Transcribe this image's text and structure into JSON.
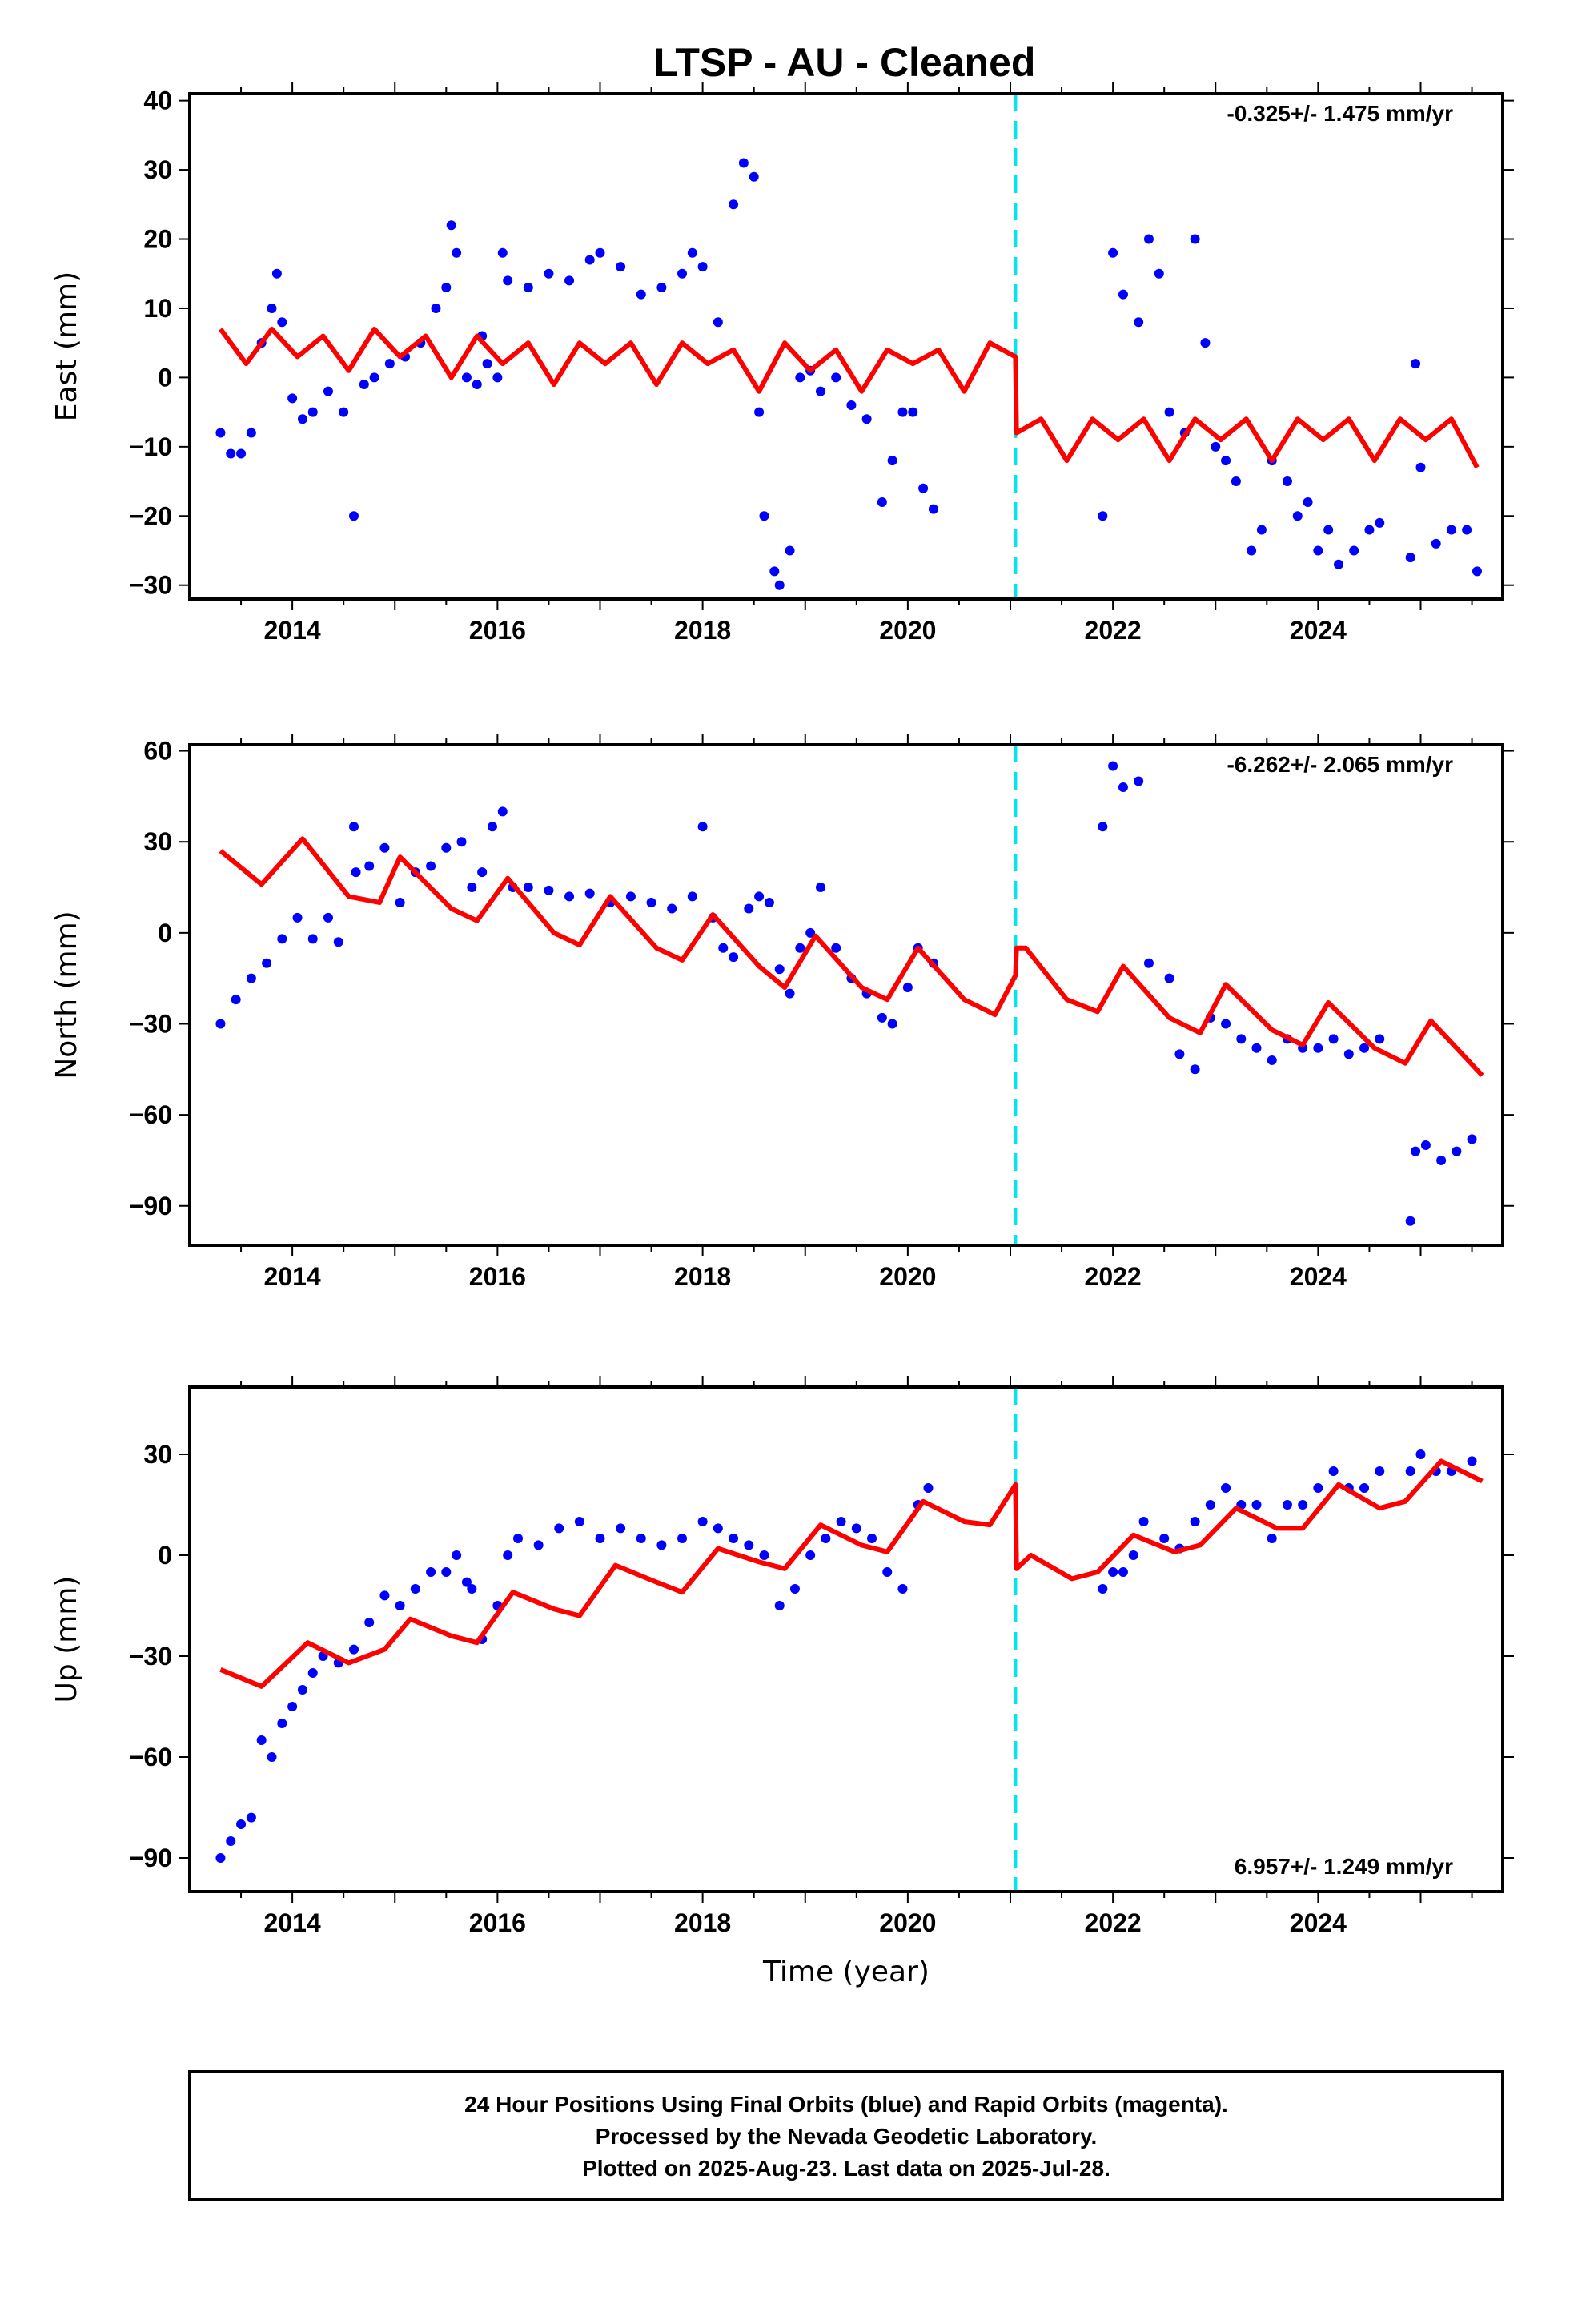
{
  "colors": {
    "data_points": "#0000ff",
    "model_line": "#ff0000",
    "offset_line": "#00e5ee",
    "frame": "#000000"
  },
  "chart_data": [
    {
      "type": "scatter",
      "component": "east",
      "title": "LTSP  - AU - Cleaned",
      "ylabel": "East (mm)",
      "xlabel": "",
      "xlim": [
        2013.0,
        2025.8
      ],
      "ylim": [
        -32,
        41
      ],
      "xticks": [
        2014,
        2016,
        2018,
        2020,
        2022,
        2024
      ],
      "yticks": [
        -30,
        -20,
        -10,
        0,
        10,
        20,
        30,
        40
      ],
      "rate_label": "-0.325+/- 1.475 mm/yr",
      "rate_label_position": "top-right",
      "offset_epoch": 2021.05,
      "series": [
        {
          "name": "",
          "kind": "points",
          "x": [
            2013.3,
            2013.4,
            2013.5,
            2013.6,
            2013.7,
            2013.8,
            2013.85,
            2013.9,
            2014.0,
            2014.1,
            2014.2,
            2014.35,
            2014.5,
            2014.6,
            2014.7,
            2014.8,
            2014.95,
            2015.1,
            2015.25,
            2015.4,
            2015.5,
            2015.55,
            2015.6,
            2015.7,
            2015.8,
            2015.85,
            2015.9,
            2016.0,
            2016.05,
            2016.1,
            2016.3,
            2016.5,
            2016.7,
            2016.9,
            2017.0,
            2017.2,
            2017.4,
            2017.6,
            2017.8,
            2017.9,
            2018.0,
            2018.15,
            2018.3,
            2018.4,
            2018.5,
            2018.55,
            2018.6,
            2018.7,
            2018.75,
            2018.85,
            2018.95,
            2019.05,
            2019.15,
            2019.3,
            2019.45,
            2019.6,
            2019.75,
            2019.85,
            2019.95,
            2020.05,
            2020.15,
            2020.25,
            2021.9,
            2022.0,
            2022.1,
            2022.25,
            2022.35,
            2022.45,
            2022.55,
            2022.7,
            2022.8,
            2022.9,
            2023.0,
            2023.1,
            2023.2,
            2023.35,
            2023.45,
            2023.55,
            2023.7,
            2023.8,
            2023.9,
            2024.0,
            2024.1,
            2024.2,
            2024.35,
            2024.5,
            2024.6,
            2024.9,
            2024.95,
            2025.0,
            2025.15,
            2025.3,
            2025.45,
            2025.55
          ],
          "y": [
            -8,
            -11,
            -11,
            -8,
            5,
            10,
            15,
            8,
            -3,
            -6,
            -5,
            -2,
            -5,
            -20,
            -1,
            0,
            2,
            3,
            5,
            10,
            13,
            22,
            18,
            0,
            -1,
            6,
            2,
            0,
            18,
            14,
            13,
            15,
            14,
            17,
            18,
            16,
            12,
            13,
            15,
            18,
            16,
            8,
            25,
            31,
            29,
            -5,
            -20,
            -28,
            -30,
            -25,
            0,
            1,
            -2,
            0,
            -4,
            -6,
            -18,
            -12,
            -5,
            -5,
            -16,
            -19,
            -20,
            18,
            12,
            8,
            20,
            15,
            -5,
            -8,
            20,
            5,
            -10,
            -12,
            -15,
            -25,
            -22,
            -12,
            -15,
            -20,
            -18,
            -25,
            -22,
            -27,
            -25,
            -22,
            -21,
            -26,
            2,
            -13,
            -24,
            -22,
            -22,
            -28
          ],
          "color": "#0000ff"
        },
        {
          "name": "",
          "kind": "line",
          "x": [
            2013.3,
            2013.55,
            2013.8,
            2014.05,
            2014.3,
            2014.55,
            2014.8,
            2015.05,
            2015.3,
            2015.55,
            2015.8,
            2016.05,
            2016.3,
            2016.55,
            2016.8,
            2017.05,
            2017.3,
            2017.55,
            2017.8,
            2018.05,
            2018.3,
            2018.55,
            2018.8,
            2019.05,
            2019.3,
            2019.55,
            2019.8,
            2020.05,
            2020.3,
            2020.55,
            2020.8,
            2021.05,
            2021.06,
            2021.3,
            2021.55,
            2021.8,
            2022.05,
            2022.3,
            2022.55,
            2022.8,
            2023.05,
            2023.3,
            2023.55,
            2023.8,
            2024.05,
            2024.3,
            2024.55,
            2024.8,
            2025.05,
            2025.3,
            2025.55
          ],
          "y": [
            7,
            2,
            7,
            3,
            6,
            1,
            7,
            3,
            6,
            0,
            6,
            2,
            5,
            -1,
            5,
            2,
            5,
            -1,
            5,
            2,
            4,
            -2,
            5,
            1,
            4,
            -2,
            4,
            2,
            4,
            -2,
            5,
            3,
            -8,
            -6,
            -12,
            -6,
            -9,
            -6,
            -12,
            -6,
            -9,
            -6,
            -12,
            -6,
            -9,
            -6,
            -12,
            -6,
            -9,
            -6,
            -13
          ],
          "color": "#ff0000"
        }
      ]
    },
    {
      "type": "scatter",
      "component": "north",
      "title": "",
      "ylabel": "North (mm)",
      "xlabel": "",
      "xlim": [
        2013.0,
        2025.8
      ],
      "ylim": [
        -103,
        62
      ],
      "xticks": [
        2014,
        2016,
        2018,
        2020,
        2022,
        2024
      ],
      "yticks": [
        -90,
        -60,
        -30,
        0,
        30,
        60
      ],
      "rate_label": "-6.262+/- 2.065 mm/yr",
      "rate_label_position": "top-right",
      "offset_epoch": 2021.05,
      "series": [
        {
          "name": "",
          "kind": "points",
          "x": [
            2013.3,
            2013.45,
            2013.6,
            2013.75,
            2013.9,
            2014.05,
            2014.2,
            2014.35,
            2014.45,
            2014.6,
            2014.62,
            2014.75,
            2014.9,
            2015.05,
            2015.2,
            2015.35,
            2015.5,
            2015.65,
            2015.75,
            2015.85,
            2015.95,
            2016.05,
            2016.15,
            2016.3,
            2016.5,
            2016.7,
            2016.9,
            2017.1,
            2017.3,
            2017.5,
            2017.7,
            2017.9,
            2018.0,
            2018.1,
            2018.2,
            2018.3,
            2018.45,
            2018.55,
            2018.65,
            2018.75,
            2018.85,
            2018.95,
            2019.05,
            2019.15,
            2019.3,
            2019.45,
            2019.6,
            2019.75,
            2019.85,
            2020.0,
            2020.1,
            2020.25,
            2021.9,
            2022.0,
            2022.1,
            2022.25,
            2022.35,
            2022.55,
            2022.65,
            2022.8,
            2022.95,
            2023.1,
            2023.25,
            2023.4,
            2023.55,
            2023.7,
            2023.85,
            2024.0,
            2024.15,
            2024.3,
            2024.45,
            2024.6,
            2024.9,
            2024.95,
            2025.05,
            2025.2,
            2025.35,
            2025.5
          ],
          "y": [
            -30,
            -22,
            -15,
            -10,
            -2,
            5,
            -2,
            5,
            -3,
            35,
            20,
            22,
            28,
            10,
            20,
            22,
            28,
            30,
            15,
            20,
            35,
            40,
            15,
            15,
            14,
            12,
            13,
            10,
            12,
            10,
            8,
            12,
            35,
            5,
            -5,
            -8,
            8,
            12,
            10,
            -12,
            -20,
            -5,
            0,
            15,
            -5,
            -15,
            -20,
            -28,
            -30,
            -18,
            -5,
            -10,
            35,
            55,
            48,
            50,
            -10,
            -15,
            -40,
            -45,
            -28,
            -30,
            -35,
            -38,
            -42,
            -35,
            -38,
            -38,
            -35,
            -40,
            -38,
            -35,
            -95,
            -72,
            -70,
            -75,
            -72,
            -68
          ],
          "color": "#0000ff"
        },
        {
          "name": "",
          "kind": "line",
          "x": [
            2013.3,
            2013.7,
            2014.1,
            2014.55,
            2014.85,
            2015.05,
            2015.55,
            2015.8,
            2016.1,
            2016.55,
            2016.8,
            2017.1,
            2017.55,
            2017.8,
            2018.1,
            2018.55,
            2018.8,
            2019.1,
            2019.55,
            2019.8,
            2020.1,
            2020.55,
            2020.85,
            2021.05,
            2021.06,
            2021.15,
            2021.55,
            2021.85,
            2022.1,
            2022.55,
            2022.85,
            2023.1,
            2023.55,
            2023.85,
            2024.1,
            2024.55,
            2024.85,
            2025.1,
            2025.6
          ],
          "y": [
            27,
            16,
            31,
            12,
            10,
            25,
            8,
            4,
            18,
            0,
            -4,
            12,
            -5,
            -9,
            6,
            -11,
            -18,
            -1,
            -18,
            -22,
            -5,
            -22,
            -27,
            -14,
            -5,
            -5,
            -22,
            -26,
            -11,
            -28,
            -33,
            -17,
            -32,
            -37,
            -23,
            -38,
            -43,
            -29,
            -47
          ],
          "color": "#ff0000"
        }
      ]
    },
    {
      "type": "scatter",
      "component": "up",
      "title": "",
      "ylabel": "Up (mm)",
      "xlabel": "Time (year)",
      "xlim": [
        2013.0,
        2025.8
      ],
      "ylim": [
        -100,
        50
      ],
      "xticks": [
        2014,
        2016,
        2018,
        2020,
        2022,
        2024
      ],
      "yticks": [
        -90,
        -60,
        -30,
        0,
        30
      ],
      "rate_label": "6.957+/- 1.249 mm/yr",
      "rate_label_position": "bottom-right",
      "offset_epoch": 2021.05,
      "series": [
        {
          "name": "",
          "kind": "points",
          "x": [
            2013.3,
            2013.4,
            2013.5,
            2013.6,
            2013.7,
            2013.8,
            2013.9,
            2014.0,
            2014.1,
            2014.2,
            2014.3,
            2014.45,
            2014.6,
            2014.75,
            2014.9,
            2015.05,
            2015.2,
            2015.35,
            2015.5,
            2015.6,
            2015.7,
            2015.75,
            2015.85,
            2016.0,
            2016.1,
            2016.2,
            2016.4,
            2016.6,
            2016.8,
            2017.0,
            2017.2,
            2017.4,
            2017.6,
            2017.8,
            2018.0,
            2018.15,
            2018.3,
            2018.45,
            2018.6,
            2018.75,
            2018.9,
            2019.05,
            2019.2,
            2019.35,
            2019.5,
            2019.65,
            2019.8,
            2019.95,
            2020.1,
            2020.2,
            2021.9,
            2022.0,
            2022.1,
            2022.2,
            2022.3,
            2022.5,
            2022.65,
            2022.8,
            2022.95,
            2023.1,
            2023.25,
            2023.4,
            2023.55,
            2023.7,
            2023.85,
            2024.0,
            2024.15,
            2024.3,
            2024.45,
            2024.6,
            2024.9,
            2025.0,
            2025.15,
            2025.3,
            2025.5
          ],
          "y": [
            -90,
            -85,
            -80,
            -78,
            -55,
            -60,
            -50,
            -45,
            -40,
            -35,
            -30,
            -32,
            -28,
            -20,
            -12,
            -15,
            -10,
            -5,
            -5,
            0,
            -8,
            -10,
            -25,
            -15,
            0,
            5,
            3,
            8,
            10,
            5,
            8,
            5,
            3,
            5,
            10,
            8,
            5,
            3,
            0,
            -15,
            -10,
            0,
            5,
            10,
            8,
            5,
            -5,
            -10,
            15,
            20,
            -10,
            -5,
            -5,
            0,
            10,
            5,
            2,
            10,
            15,
            20,
            15,
            15,
            5,
            15,
            15,
            20,
            25,
            20,
            20,
            25,
            25,
            30,
            25,
            25,
            28
          ],
          "color": "#0000ff"
        },
        {
          "name": "",
          "kind": "line",
          "x": [
            2013.3,
            2013.7,
            2014.15,
            2014.55,
            2014.9,
            2015.15,
            2015.55,
            2015.8,
            2016.15,
            2016.55,
            2016.8,
            2017.15,
            2017.55,
            2017.8,
            2018.15,
            2018.55,
            2018.8,
            2019.15,
            2019.55,
            2019.8,
            2020.15,
            2020.55,
            2020.8,
            2021.05,
            2021.06,
            2021.2,
            2021.6,
            2021.85,
            2022.2,
            2022.6,
            2022.85,
            2023.2,
            2023.6,
            2023.85,
            2024.2,
            2024.6,
            2024.85,
            2025.2,
            2025.6
          ],
          "y": [
            -34,
            -39,
            -26,
            -32,
            -28,
            -19,
            -24,
            -26,
            -11,
            -16,
            -18,
            -3,
            -8,
            -11,
            2,
            -2,
            -4,
            9,
            3,
            1,
            16,
            10,
            9,
            21,
            -4,
            0,
            -7,
            -5,
            6,
            1,
            3,
            14,
            8,
            8,
            21,
            14,
            16,
            28,
            22
          ],
          "color": "#ff0000"
        }
      ]
    }
  ],
  "footer": {
    "line1": "24 Hour Positions Using Final Orbits (blue) and Rapid Orbits (magenta).",
    "line2": "Processed by the Nevada Geodetic Laboratory.",
    "line3": "Plotted on 2025-Aug-23. Last data on 2025-Jul-28."
  }
}
